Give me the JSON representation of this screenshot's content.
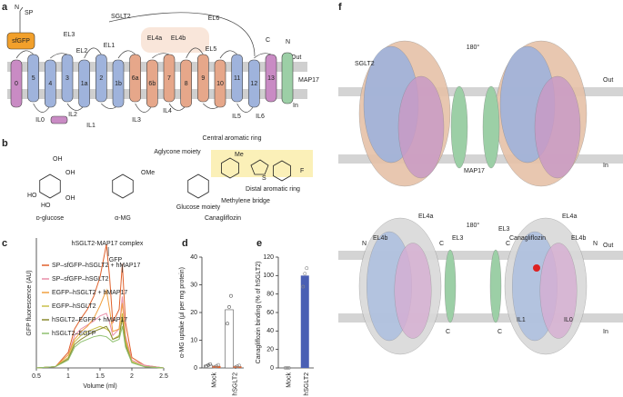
{
  "panel_a": {
    "label": "a",
    "n_terminus": "N",
    "signal_peptide": "SP",
    "sfgfp": "sfGFP",
    "sglt2": "SGLT2",
    "map17": "MAP17",
    "c_terminus": "C",
    "map17_n": "N",
    "map17_c": "C",
    "out": "Out",
    "in": "In",
    "loops": [
      "EL1",
      "EL2",
      "EL3",
      "EL4a",
      "EL4b",
      "EL5",
      "EL6",
      "IL0",
      "IL1",
      "IL2",
      "IL3",
      "IL4",
      "IL5",
      "IL6"
    ],
    "helices": [
      {
        "label": "0",
        "color": "#c98bc4"
      },
      {
        "label": "5",
        "color": "#9fb3dc"
      },
      {
        "label": "4",
        "color": "#9fb3dc"
      },
      {
        "label": "3",
        "color": "#9fb3dc"
      },
      {
        "label": "1a",
        "color": "#9fb3dc"
      },
      {
        "label": "2",
        "color": "#9fb3dc"
      },
      {
        "label": "1b",
        "color": "#9fb3dc"
      },
      {
        "label": "6a",
        "color": "#e6a78a"
      },
      {
        "label": "6b",
        "color": "#e6a78a"
      },
      {
        "label": "7",
        "color": "#e6a78a"
      },
      {
        "label": "8",
        "color": "#e6a78a"
      },
      {
        "label": "9",
        "color": "#e6a78a"
      },
      {
        "label": "10",
        "color": "#e6a78a"
      },
      {
        "label": "11",
        "color": "#9fb3dc"
      },
      {
        "label": "12",
        "color": "#9fb3dc"
      },
      {
        "label": "13",
        "color": "#c98bc4"
      }
    ]
  },
  "panel_b": {
    "label": "b",
    "molecules": [
      "ᴅ-glucose",
      "α-MG",
      "Canagliflozin"
    ],
    "annotations": [
      "Central aromatic ring",
      "Aglycone moiety",
      "Glucose moiety",
      "Methylene bridge",
      "Distal aromatic ring"
    ],
    "atoms": [
      "OH",
      "HO",
      "OH",
      "HO",
      "OH",
      "OMe",
      "Me",
      "S",
      "F"
    ]
  },
  "panel_f": {
    "label": "f",
    "rotation": "180°",
    "sglt2": "SGLT2",
    "map17": "MAP17",
    "out": "Out",
    "in": "In",
    "labels": [
      "EL4a",
      "EL3",
      "EL4b",
      "N",
      "C",
      "Canagliflozin",
      "IL0",
      "IL1"
    ]
  },
  "chart_data": [
    {
      "type": "line",
      "label": "c",
      "xlabel": "Volume (ml)",
      "ylabel": "GFP fluorescence (AU)",
      "annotations": [
        "hSGLT2-MAP17 complex",
        "GFP"
      ],
      "xlim": [
        0.5,
        2.5
      ],
      "xticks": [
        0.5,
        1.0,
        1.5,
        2.0,
        2.5
      ],
      "ylim": [
        0,
        1
      ],
      "x": [
        0.5,
        0.8,
        1.0,
        1.1,
        1.2,
        1.3,
        1.4,
        1.5,
        1.6,
        1.65,
        1.7,
        1.8,
        1.85,
        1.9,
        2.0,
        2.2,
        2.5
      ],
      "series": [
        {
          "name": "SP–sfGFP–hSGLT2 + hMAP17",
          "color": "#e0602b",
          "values": [
            0,
            0.01,
            0.12,
            0.3,
            0.38,
            0.45,
            0.55,
            0.7,
            0.95,
            0.7,
            0.35,
            0.45,
            0.8,
            0.35,
            0.08,
            0.02,
            0
          ]
        },
        {
          "name": "SP–sfGFP–hSGLT2",
          "color": "#e88fa8",
          "values": [
            0,
            0.01,
            0.1,
            0.25,
            0.3,
            0.33,
            0.36,
            0.4,
            0.42,
            0.35,
            0.25,
            0.3,
            0.55,
            0.25,
            0.06,
            0.02,
            0
          ]
        },
        {
          "name": "EGFP–hSGLT2 + hMAP17",
          "color": "#f0a040",
          "values": [
            0,
            0.01,
            0.1,
            0.22,
            0.28,
            0.32,
            0.38,
            0.48,
            0.6,
            0.45,
            0.28,
            0.3,
            0.5,
            0.22,
            0.05,
            0.01,
            0
          ]
        },
        {
          "name": "EGFP–hSGLT2",
          "color": "#c8c04a",
          "values": [
            0,
            0.01,
            0.08,
            0.2,
            0.25,
            0.28,
            0.3,
            0.32,
            0.3,
            0.28,
            0.22,
            0.25,
            0.42,
            0.2,
            0.05,
            0.01,
            0
          ]
        },
        {
          "name": "hSGLT2–EGFP + hMAP17",
          "color": "#8a8a30",
          "values": [
            0,
            0.01,
            0.07,
            0.18,
            0.22,
            0.25,
            0.28,
            0.3,
            0.32,
            0.28,
            0.22,
            0.24,
            0.38,
            0.18,
            0.04,
            0.01,
            0
          ]
        },
        {
          "name": "hSGLT2–EGFP",
          "color": "#8fc070",
          "values": [
            0,
            0.01,
            0.06,
            0.16,
            0.2,
            0.22,
            0.24,
            0.25,
            0.24,
            0.22,
            0.2,
            0.22,
            0.32,
            0.16,
            0.04,
            0.01,
            0
          ]
        }
      ]
    },
    {
      "type": "bar",
      "label": "d",
      "ylabel": "α-MG uptake (μl per mg protein)",
      "categories": [
        "Mock",
        "hSGLT2"
      ],
      "ylim": [
        0,
        40
      ],
      "yticks": [
        0,
        10,
        20,
        30,
        40
      ],
      "series": [
        {
          "color": "#ffffff",
          "values": [
            1,
            21
          ],
          "points": [
            [
              0.6,
              1,
              1.4
            ],
            [
              16,
              22,
              26
            ]
          ]
        },
        {
          "color": "#e0602b",
          "values": [
            0.7,
            0.6
          ],
          "points": [
            [
              0.4,
              0.7,
              1.1
            ],
            [
              0.3,
              0.6,
              0.9
            ]
          ]
        }
      ]
    },
    {
      "type": "bar",
      "label": "e",
      "ylabel": "Canagliflozin binding (% of hSGLT2)",
      "categories": [
        "Mock",
        "hSGLT2"
      ],
      "ylim": [
        0,
        120
      ],
      "yticks": [
        0,
        20,
        40,
        60,
        80,
        100,
        120
      ],
      "series": [
        {
          "color": "#4a5fb4",
          "values": [
            0,
            100
          ],
          "points": [
            [
              0,
              0,
              0
            ],
            [
              88,
              102,
              108
            ]
          ]
        }
      ]
    }
  ]
}
